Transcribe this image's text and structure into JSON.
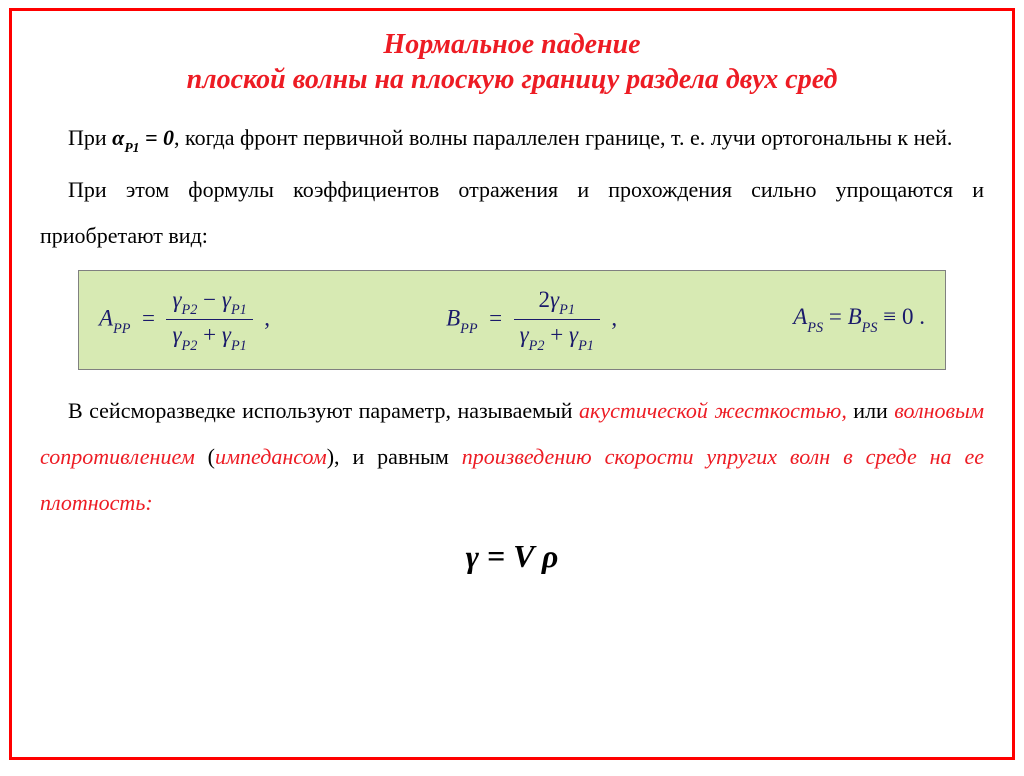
{
  "colors": {
    "frame_border": "#ff0000",
    "title_color": "#ed1c24",
    "text_color": "#000000",
    "red_text": "#ed1c24",
    "formula_bg": "#d7eab3",
    "formula_border": "#808080",
    "formula_text": "#1a1a6a",
    "frac_rule": "#1a1a6a"
  },
  "title": {
    "line1": "Нормальное падение",
    "line2": "плоской волны на плоскую границу раздела двух сред"
  },
  "para1": {
    "t1": "При ",
    "alpha": "α",
    "alpha_sub": "P1",
    "eq": " = 0",
    "t2": ", когда фронт первичной волны параллелен границе, т. е. лучи ортогональны к ней."
  },
  "para2": "При этом формулы коэффициентов отражения и прохождения сильно упрощаются и приобретают вид:",
  "formulas": {
    "A_label": "A",
    "A_sub": "PP",
    "B_label": "B",
    "B_sub": "PP",
    "gamma": "γ",
    "p2": "P2",
    "p1": "P1",
    "two": "2",
    "eq3_lhs1": "A",
    "eq3_sub1": "PS",
    "eq3_lhs2": "B",
    "eq3_sub2": "PS",
    "eq3_rhs": "0",
    "comma": ",",
    "period": "."
  },
  "para3": {
    "t1": "В сейсморазведке используют параметр, называемый ",
    "r1": "акустической жесткостью",
    "comma1": ",",
    "t2": " или ",
    "r2": "волновым сопротивлением",
    "t3": " (",
    "r3": "импедансом",
    "t4": "), и равным ",
    "r4": "произведению скорости упругих волн в среде на ее плотность:"
  },
  "big_eq": "γ = V ρ"
}
